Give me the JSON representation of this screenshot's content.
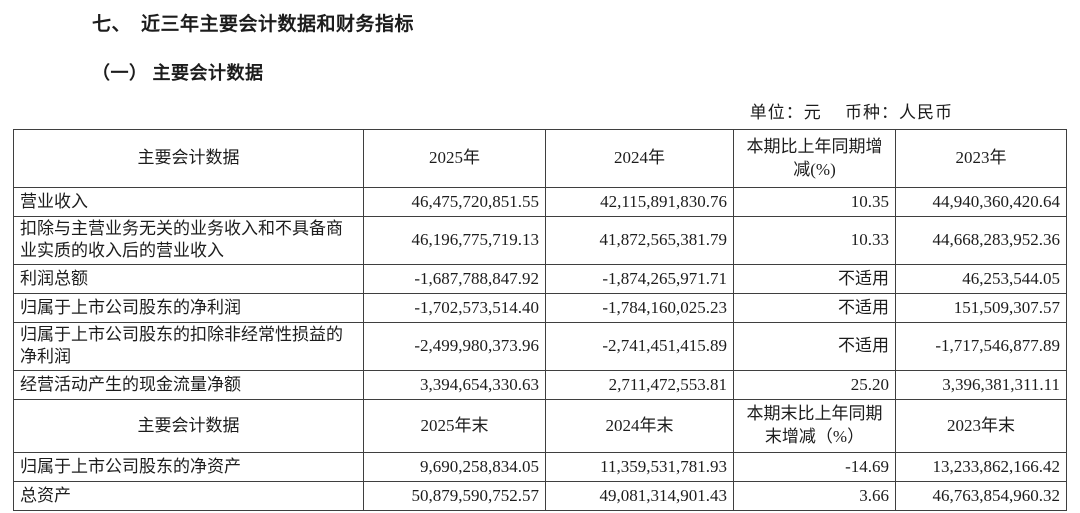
{
  "page": {
    "title": "七、　近三年主要会计数据和财务指标",
    "subtitle": "（一） 主要会计数据",
    "unit_note": "单位：元　 币种：人民币"
  },
  "table": {
    "section1": {
      "headers": [
        "主要会计数据",
        "2025年",
        "2024年",
        "本期比上年同期增减(%)",
        "2023年"
      ],
      "rows": [
        [
          "营业收入",
          "46,475,720,851.55",
          "42,115,891,830.76",
          "10.35",
          "44,940,360,420.64"
        ],
        [
          "扣除与主营业务无关的业务收入和不具备商业实质的收入后的营业收入",
          "46,196,775,719.13",
          "41,872,565,381.79",
          "10.33",
          "44,668,283,952.36"
        ],
        [
          "利润总额",
          "-1,687,788,847.92",
          "-1,874,265,971.71",
          "不适用",
          "46,253,544.05"
        ],
        [
          "归属于上市公司股东的净利润",
          "-1,702,573,514.40",
          "-1,784,160,025.23",
          "不适用",
          "151,509,307.57"
        ],
        [
          "归属于上市公司股东的扣除非经常性损益的净利润",
          "-2,499,980,373.96",
          "-2,741,451,415.89",
          "不适用",
          "-1,717,546,877.89"
        ],
        [
          "经营活动产生的现金流量净额",
          "3,394,654,330.63",
          "2,711,472,553.81",
          "25.20",
          "3,396,381,311.11"
        ]
      ]
    },
    "section2": {
      "headers": [
        "主要会计数据",
        "2025年末",
        "2024年末",
        "本期末比上年同期末增减（%）",
        "2023年末"
      ],
      "rows": [
        [
          "归属于上市公司股东的净资产",
          "9,690,258,834.05",
          "11,359,531,781.93",
          "-14.69",
          "13,233,862,166.42"
        ],
        [
          "总资产",
          "50,879,590,752.57",
          "49,081,314,901.43",
          "3.66",
          "46,763,854,960.32"
        ]
      ]
    }
  }
}
